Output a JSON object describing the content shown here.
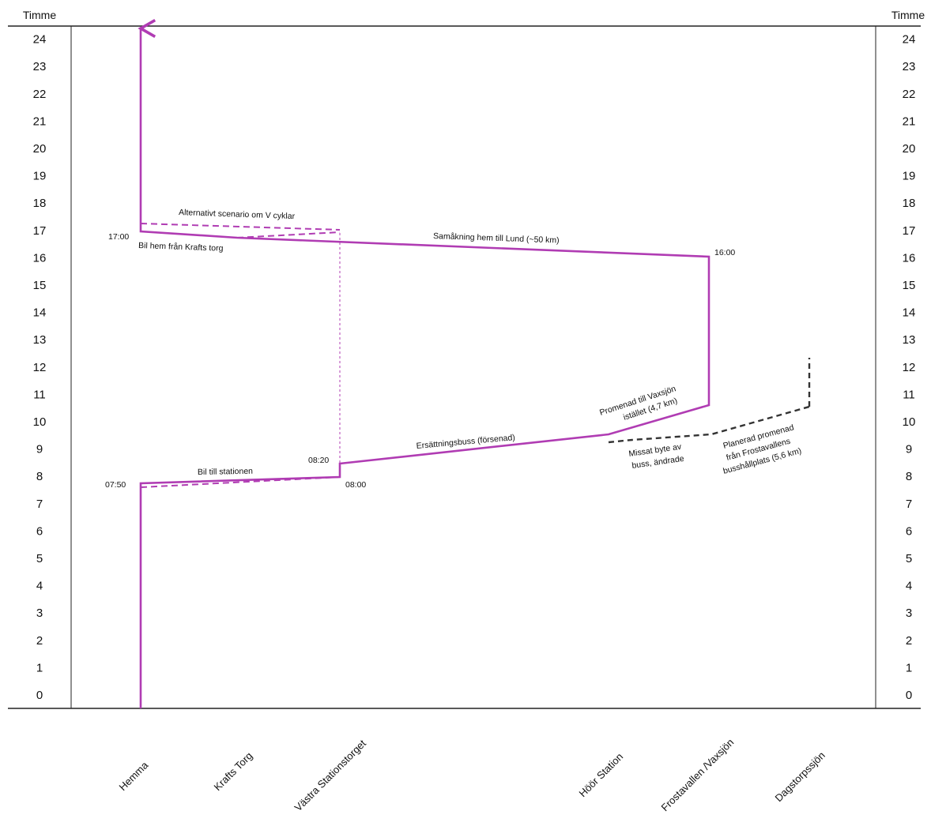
{
  "axes": {
    "left_title": "Timme",
    "right_title": "Timme",
    "ticks": [
      "0",
      "1",
      "2",
      "3",
      "4",
      "5",
      "6",
      "7",
      "8",
      "9",
      "10",
      "11",
      "12",
      "13",
      "14",
      "15",
      "16",
      "17",
      "18",
      "19",
      "20",
      "21",
      "22",
      "23",
      "24"
    ]
  },
  "places": [
    "Hemma",
    "Krafts Torg",
    "Västra Stationstorget",
    "Höör Station",
    "Frostavallen /Vaxsjön",
    "Dagstorpssjön"
  ],
  "time_labels": {
    "t0750": "07:50",
    "t0800": "08:00",
    "t0820": "08:20",
    "t1600": "16:00",
    "t1700": "17:00"
  },
  "annotations": {
    "alt_scenario": "Alternativt scenario om V cyklar",
    "car_home": "Bil hem från Krafts torg",
    "carpool": "Samåkning hem till Lund (~50 km)",
    "walk_vaxsjon_1": "Promenad till Vaxsjön",
    "walk_vaxsjon_2": "istället (4,7 km)",
    "replacement_bus": "Ersättningsbuss (försenad)",
    "car_station": "Bil till stationen",
    "missed_1": "Missat byte av",
    "missed_2": "buss, ändrade",
    "planned_1": "Planerad promenad",
    "planned_2": "från Frostavallens",
    "planned_3": "busshållplats (5,6 km)"
  },
  "colors": {
    "path": "#b03cb3",
    "planned": "#333333",
    "axis": "#222222"
  },
  "chart_data": {
    "type": "time-geography path",
    "y_unit": "hour",
    "ylim": [
      0,
      24
    ],
    "actual_path": [
      {
        "place": "Hemma",
        "hour": 0
      },
      {
        "place": "Hemma",
        "hour": 7.8
      },
      {
        "place": "Västra Stationstorget",
        "hour": 8.0
      },
      {
        "place": "Västra Stationstorget",
        "hour": 8.5
      },
      {
        "place": "Höör Station",
        "hour": 9.5
      },
      {
        "place": "Frostavallen /Vaxsjön",
        "hour": 10.7
      },
      {
        "place": "Frostavallen /Vaxsjön",
        "hour": 16.0
      },
      {
        "place": "Krafts Torg",
        "hour": 16.75
      },
      {
        "place": "Hemma",
        "hour": 17.0
      },
      {
        "place": "Hemma",
        "hour": 24
      }
    ],
    "alternative_path": [
      {
        "place": "Hemma",
        "hour": 7.7
      },
      {
        "place": "Västra Stationstorget",
        "hour": 8.0
      },
      {
        "place": "Västra Stationstorget",
        "hour": 17.0
      },
      {
        "place": "Hemma",
        "hour": 17.3
      }
    ],
    "planned_path": [
      {
        "place": "Höör Station",
        "hour": 9.3
      },
      {
        "place": "Frostavallen /Vaxsjön",
        "hour": 9.5
      },
      {
        "place": "Dagstorpssjön",
        "hour": 10.6
      },
      {
        "place": "Dagstorpssjön",
        "hour": 12.3
      }
    ]
  }
}
